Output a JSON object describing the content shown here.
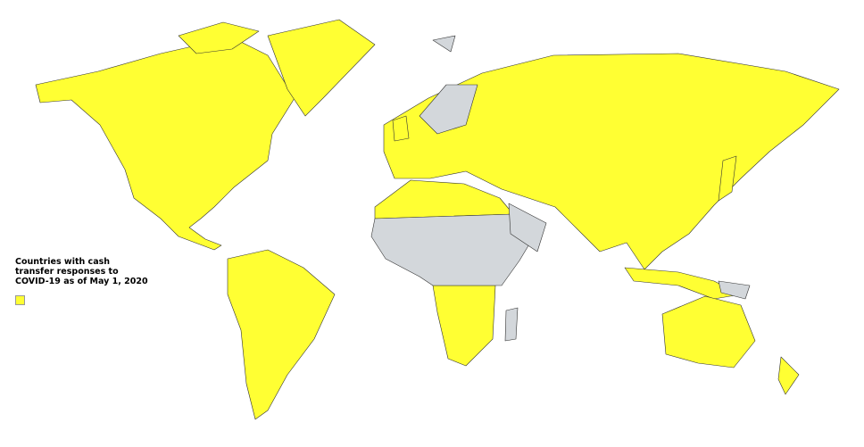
{
  "legend": {
    "title": "Countries with cash transfer responses to COVID-19 as of May 1, 2020",
    "swatch_color": "#FFFF33"
  },
  "colors": {
    "with_cash_transfer": "#FFFF33",
    "without_cash_transfer": "#D3D7DB",
    "background": "#FFFFFF"
  }
}
